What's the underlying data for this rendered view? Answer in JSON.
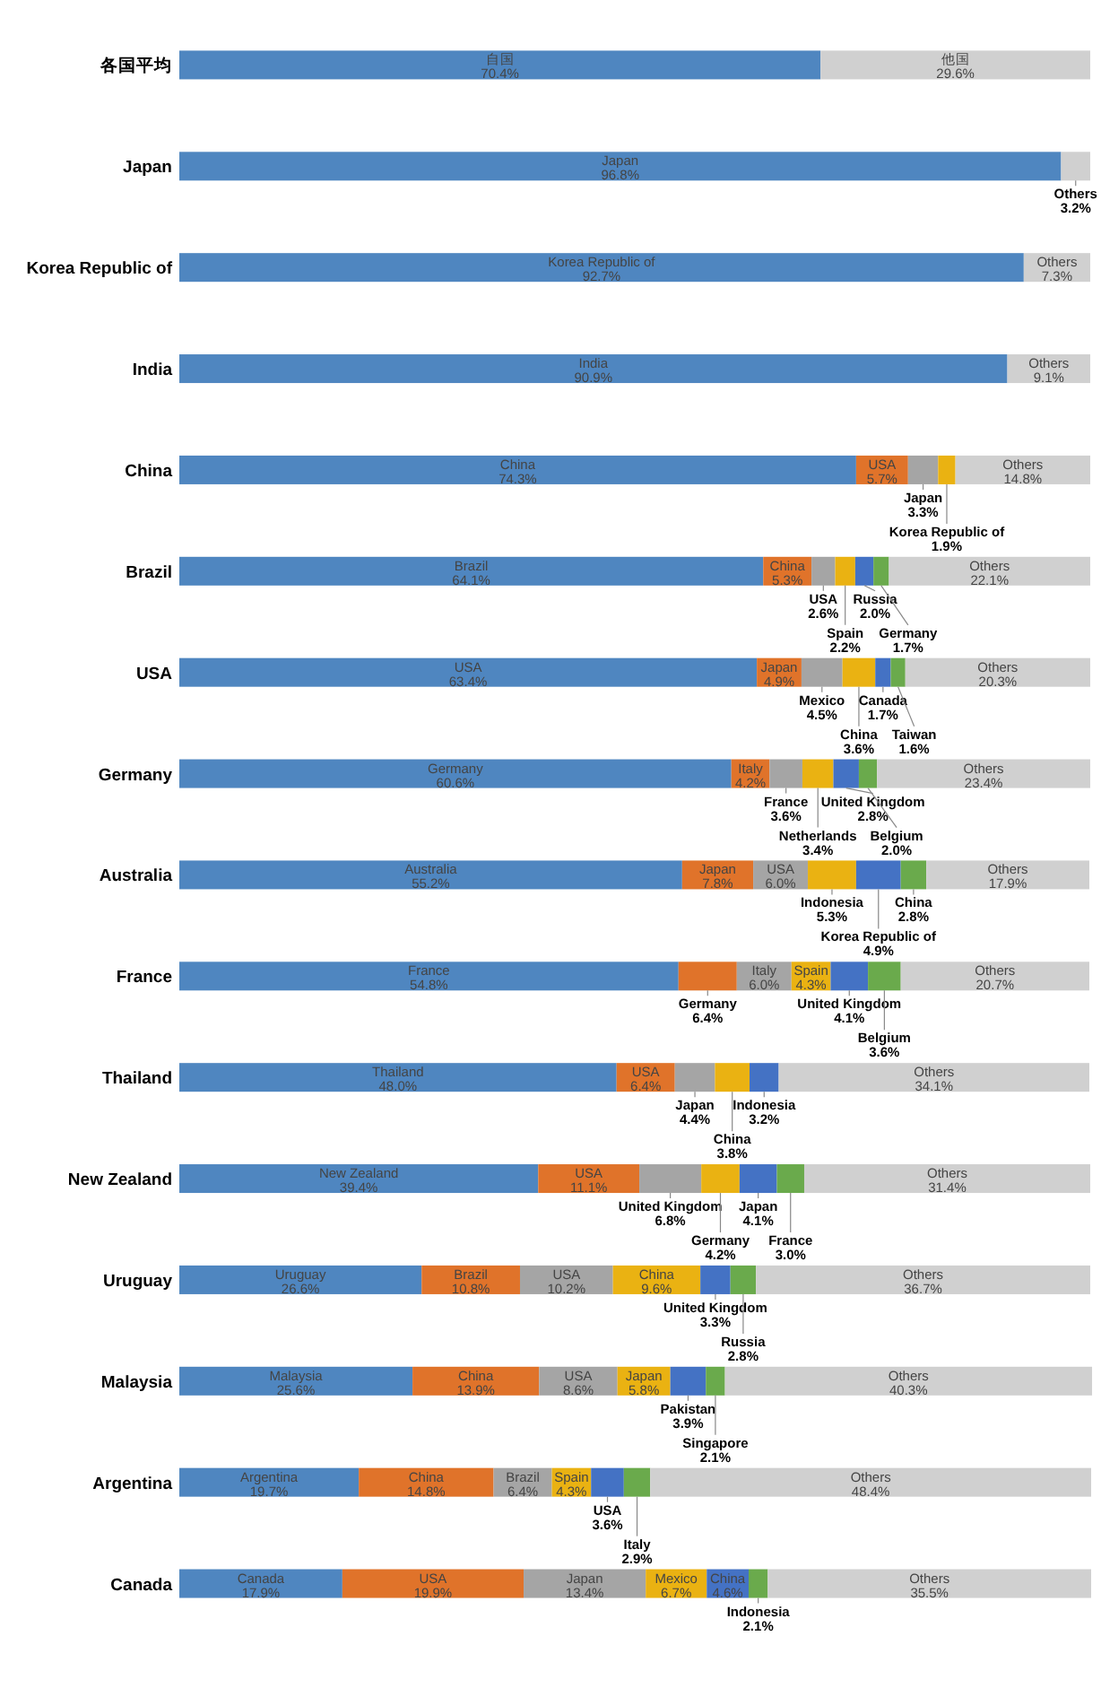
{
  "chart_data": {
    "type": "bar",
    "orientation": "horizontal",
    "stacked": true,
    "xlim": [
      0,
      100
    ],
    "tick_labels": "y",
    "categories": [
      "各国平均",
      "Japan",
      "Korea Republic of",
      "India",
      "China",
      "Brazil",
      "USA",
      "Germany",
      "Australia",
      "France",
      "Thailand",
      "New Zealand",
      "Uruguay",
      "Malaysia",
      "Argentina",
      "Canada"
    ],
    "series": [
      {
        "color": "#4f86c0",
        "values": [
          70.4,
          96.8,
          92.7,
          90.9,
          74.3,
          64.1,
          63.4,
          60.6,
          55.2,
          54.8,
          48.0,
          39.4,
          26.6,
          25.6,
          19.7,
          17.9
        ],
        "value_labels": [
          "自国\n70.4%",
          "Japan\n96.8%",
          "Korea Republic of\n92.7%",
          "India\n90.9%",
          "China\n74.3%",
          "Brazil\n64.1%",
          "USA\n63.4%",
          "Germany\n60.6%",
          "Australia\n55.2%",
          "France\n54.8%",
          "Thailand\n48.0%",
          "New Zealand\n39.4%",
          "Uruguay\n26.6%",
          "Malaysia\n25.6%",
          "Argentina\n19.7%",
          "Canada\n17.9%"
        ]
      },
      {
        "color": "#e0732a",
        "values": [
          null,
          null,
          null,
          null,
          5.7,
          5.3,
          4.9,
          4.2,
          7.8,
          6.4,
          6.4,
          11.1,
          10.8,
          13.9,
          14.8,
          19.9
        ],
        "value_labels": [
          null,
          null,
          null,
          null,
          "USA\n5.7%",
          "China\n5.3%",
          "Japan\n4.9%",
          "Italy\n4.2%",
          "Japan\n7.8%",
          "Germany\n6.4%",
          "USA\n6.4%",
          "USA\n11.1%",
          "Brazil\n10.8%",
          "China\n13.9%",
          "China\n14.8%",
          "USA\n19.9%"
        ]
      },
      {
        "color": "#a5a5a5",
        "values": [
          null,
          null,
          null,
          null,
          3.3,
          2.6,
          4.5,
          3.6,
          6.0,
          6.0,
          4.4,
          6.8,
          10.2,
          8.6,
          6.4,
          13.4
        ],
        "value_labels": [
          null,
          null,
          null,
          null,
          "Japan\n3.3%",
          "USA\n2.6%",
          "Mexico\n4.5%",
          "France\n3.6%",
          "USA\n6.0%",
          "Italy\n6.0%",
          "Japan\n4.4%",
          "United Kingdom\n6.8%",
          "USA\n10.2%",
          "USA\n8.6%",
          "Brazil\n6.4%",
          "Japan\n13.4%"
        ]
      },
      {
        "color": "#eab212",
        "values": [
          null,
          null,
          null,
          null,
          1.9,
          2.2,
          3.6,
          3.4,
          5.3,
          4.3,
          3.8,
          4.2,
          9.6,
          5.8,
          4.3,
          6.7
        ],
        "value_labels": [
          null,
          null,
          null,
          null,
          "Korea Republic of\n1.9%",
          "Spain\n2.2%",
          "China\n3.6%",
          "Netherlands\n3.4%",
          "Indonesia\n5.3%",
          "Spain\n4.3%",
          "China\n3.8%",
          "Germany\n4.2%",
          "China\n9.6%",
          "Japan\n5.8%",
          "Spain\n4.3%",
          "Mexico\n6.7%"
        ]
      },
      {
        "color": "#4472c4",
        "values": [
          null,
          null,
          null,
          null,
          null,
          2.0,
          1.7,
          2.8,
          4.9,
          4.1,
          3.2,
          4.1,
          3.3,
          3.9,
          3.6,
          4.6
        ],
        "value_labels": [
          null,
          null,
          null,
          null,
          null,
          "Russia\n2.0%",
          "Canada\n1.7%",
          "United Kingdom\n2.8%",
          "Korea Republic of\n4.9%",
          "United Kingdom\n4.1%",
          "Indonesia\n3.2%",
          "Japan\n4.1%",
          "United Kingdom\n3.3%",
          "Pakistan\n3.9%",
          "USA\n3.6%",
          "China\n4.6%"
        ]
      },
      {
        "color": "#6aaa4c",
        "values": [
          null,
          null,
          null,
          null,
          null,
          1.7,
          1.6,
          2.0,
          2.8,
          3.6,
          null,
          3.0,
          2.8,
          2.1,
          2.9,
          2.1
        ],
        "value_labels": [
          null,
          null,
          null,
          null,
          null,
          "Germany\n1.7%",
          "Taiwan\n1.6%",
          "Belgium\n2.0%",
          "China\n2.8%",
          "Belgium\n3.6%",
          null,
          "France\n3.0%",
          "Russia\n2.8%",
          "Singapore\n2.1%",
          "Italy\n2.9%",
          "Indonesia\n2.1%"
        ]
      },
      {
        "color": "#d0d0d0",
        "values": [
          29.6,
          3.2,
          7.3,
          9.1,
          14.8,
          22.1,
          20.3,
          23.4,
          17.9,
          20.7,
          34.1,
          31.4,
          36.7,
          40.3,
          48.4,
          35.5
        ],
        "value_labels": [
          "他国\n29.6%",
          "Others\n3.2%",
          "Others\n7.3%",
          "Others\n9.1%",
          "Others\n14.8%",
          "Others\n22.1%",
          "Others\n20.3%",
          "Others\n23.4%",
          "Others\n17.9%",
          "Others\n20.7%",
          "Others\n34.1%",
          "Others\n31.4%",
          "Others\n36.7%",
          "Others\n40.3%",
          "Others\n48.4%",
          "Others\n35.5%"
        ]
      }
    ]
  }
}
